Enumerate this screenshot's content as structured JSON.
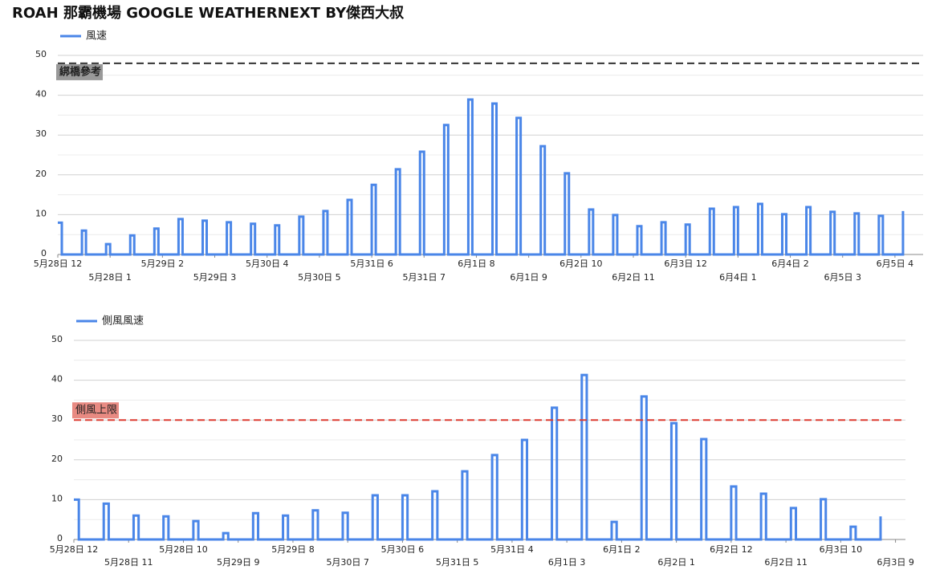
{
  "title": "ROAH 那霸機場 GOOGLE WEATHERNEXT BY傑西大叔",
  "chart_data": [
    {
      "type": "line",
      "step": true,
      "grid": true,
      "legend": "top-left",
      "series": [
        {
          "name": "風速",
          "color": "#4a86e8",
          "x": [
            0,
            1,
            6,
            7,
            12,
            13,
            18,
            19,
            24,
            25,
            30,
            31,
            36,
            37,
            42,
            43,
            48,
            49,
            54,
            55,
            60,
            61,
            66,
            67,
            72,
            73,
            78,
            79,
            84,
            85,
            90,
            91,
            96,
            97,
            102,
            103,
            108,
            109,
            114,
            115,
            120,
            121,
            126,
            127,
            132,
            133,
            138,
            139,
            144,
            145,
            150,
            151,
            156,
            157,
            162,
            163,
            168,
            169,
            174,
            175,
            180,
            181,
            186,
            187,
            192,
            193,
            198,
            199,
            204,
            205,
            210
          ],
          "values": [
            8,
            0,
            6,
            0,
            2.6,
            0,
            4.8,
            0,
            6.5,
            0,
            8.9,
            0,
            8.5,
            0,
            8.1,
            0,
            7.7,
            0,
            7.3,
            0,
            9.5,
            0,
            10.9,
            0,
            13.7,
            0,
            17.5,
            0,
            21.4,
            0,
            25.8,
            0,
            32.5,
            0,
            38.9,
            0,
            37.9,
            0,
            34.3,
            0,
            27.2,
            0,
            20.4,
            0,
            11.3,
            0,
            9.9,
            0,
            7.1,
            0,
            8.1,
            0,
            7.5,
            0,
            11.5,
            0,
            11.9,
            0,
            12.7,
            0,
            10.1,
            0,
            11.9,
            0,
            10.7,
            0,
            10.3,
            0,
            9.7,
            0,
            10.9
          ]
        }
      ],
      "xlim": [
        0,
        215
      ],
      "xticks": [
        {
          "value": 0,
          "label": "5月28日 12"
        },
        {
          "value": 13,
          "label": "5月28日 1"
        },
        {
          "value": 26,
          "label": "5月29日 2"
        },
        {
          "value": 39,
          "label": "5月29日 3"
        },
        {
          "value": 52,
          "label": "5月30日 4"
        },
        {
          "value": 65,
          "label": "5月30日 5"
        },
        {
          "value": 78,
          "label": "5月31日 6"
        },
        {
          "value": 91,
          "label": "5月31日 7"
        },
        {
          "value": 104,
          "label": "6月1日 8"
        },
        {
          "value": 117,
          "label": "6月1日 9"
        },
        {
          "value": 130,
          "label": "6月2日 10"
        },
        {
          "value": 143,
          "label": "6月2日 11"
        },
        {
          "value": 156,
          "label": "6月3日 12"
        },
        {
          "value": 169,
          "label": "6月4日 1"
        },
        {
          "value": 182,
          "label": "6月4日 2"
        },
        {
          "value": 195,
          "label": "6月5日 3"
        },
        {
          "value": 208,
          "label": "6月5日 4"
        }
      ],
      "ylim": [
        0,
        50
      ],
      "yticks": [
        0,
        10,
        20,
        30,
        40,
        50
      ],
      "yminorticks": [
        5,
        15,
        25,
        35,
        45
      ],
      "reference": {
        "value": 48,
        "label": "綁橋參考",
        "color": "#333333",
        "label_bg": "#999999",
        "label_color": "#ffffff",
        "label_side": "below"
      }
    },
    {
      "type": "line",
      "step": true,
      "grid": true,
      "legend": "top-left",
      "series": [
        {
          "name": "側風風速",
          "color": "#4a86e8",
          "x": [
            0,
            1,
            6,
            7,
            12,
            13,
            18,
            19,
            24,
            25,
            30,
            31,
            36,
            37,
            42,
            43,
            48,
            49,
            54,
            55,
            60,
            61,
            66,
            67,
            72,
            73,
            78,
            79,
            84,
            85,
            90,
            91,
            96,
            97,
            102,
            103,
            108,
            109,
            114,
            115,
            120,
            121,
            126,
            127,
            132,
            133,
            138,
            139,
            144,
            145,
            150,
            151,
            156,
            157,
            162
          ],
          "values": [
            10,
            0,
            9,
            0,
            6,
            0,
            5.8,
            0,
            4.6,
            0,
            1.6,
            0,
            6.6,
            0,
            6,
            0,
            7.3,
            0,
            6.7,
            0,
            11.1,
            0,
            11.1,
            0,
            12.1,
            0,
            17.1,
            0,
            21.2,
            0,
            25,
            0,
            33.1,
            0,
            41.3,
            0,
            4.4,
            0,
            35.9,
            0,
            29.2,
            0,
            25.2,
            0,
            13.3,
            0,
            11.5,
            0,
            7.9,
            0,
            10.1,
            0,
            3.2,
            0,
            5.8
          ]
        }
      ],
      "xlim": [
        0,
        167
      ],
      "xticks": [
        {
          "value": 0,
          "label": "5月28日 12"
        },
        {
          "value": 11,
          "label": "5月28日 11"
        },
        {
          "value": 22,
          "label": "5月28日 10"
        },
        {
          "value": 33,
          "label": "5月29日 9"
        },
        {
          "value": 44,
          "label": "5月29日 8"
        },
        {
          "value": 55,
          "label": "5月30日 7"
        },
        {
          "value": 66,
          "label": "5月30日 6"
        },
        {
          "value": 77,
          "label": "5月31日 5"
        },
        {
          "value": 88,
          "label": "5月31日 4"
        },
        {
          "value": 99,
          "label": "6月1日 3"
        },
        {
          "value": 110,
          "label": "6月1日 2"
        },
        {
          "value": 121,
          "label": "6月2日 1"
        },
        {
          "value": 132,
          "label": "6月2日 12"
        },
        {
          "value": 143,
          "label": "6月2日 11"
        },
        {
          "value": 154,
          "label": "6月3日 10"
        },
        {
          "value": 165,
          "label": "6月3日 9"
        }
      ],
      "ylim": [
        0,
        50
      ],
      "yticks": [
        0,
        10,
        20,
        30,
        40,
        50
      ],
      "yminorticks": [
        5,
        15,
        25,
        35,
        45
      ],
      "reference": {
        "value": 30,
        "label": "側風上限",
        "color": "#dd3b30",
        "label_bg": "#e88a82",
        "label_color": "#222222",
        "label_side": "above"
      }
    }
  ]
}
